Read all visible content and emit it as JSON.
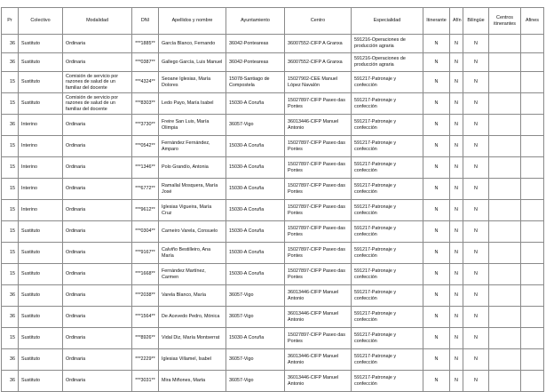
{
  "table": {
    "headers": [
      "Pr",
      "Colectivo",
      "Modalidad",
      "DNI",
      "Apellidos y nombre",
      "Ayuntamiento",
      "Centro",
      "Especialidad",
      "Itinerante",
      "Afín",
      "Bilingüe",
      "Centros itinerantes",
      "Afines"
    ],
    "rows": [
      [
        "36",
        "Sustituto",
        "Ordinaria",
        "***1885**",
        "García Blanco, Fernando",
        "36042-Ponteareas",
        "36007552-CIFP A Granxa",
        "591216-Operaciones de producción agraria",
        "N",
        "N",
        "N",
        "",
        ""
      ],
      [
        "36",
        "Sustituto",
        "Ordinaria",
        "***0387**",
        "Gallego García, Luis Manuel",
        "36042-Ponteareas",
        "36007552-CIFP A Granxa",
        "591216-Operaciones de producción agraria",
        "N",
        "N",
        "N",
        "",
        ""
      ],
      [
        "15",
        "Sustituto",
        "Comisión de servicio por razones de salud de un familiar del docente",
        "***4324**",
        "Seoane Iglesias, María Dolores",
        "15078-Santiago de Compostela",
        "15027902-CEE Manuel López Navalón",
        "591217-Patronaje y confección",
        "N",
        "N",
        "N",
        "",
        ""
      ],
      [
        "15",
        "Sustituto",
        "Comisión de servicio por razones de salud de un familiar del docente",
        "***8303**",
        "Ledo Payo, María Isabel",
        "15030-A Coruña",
        "15027897-CIFP Paseo das Pontes",
        "591217-Patronaje y confección",
        "N",
        "N",
        "N",
        "",
        ""
      ],
      [
        "36",
        "Interino",
        "Ordinaria",
        "***3730**",
        "Freire San Luis, María Olimpia",
        "36057-Vigo",
        "36013446-CIFP Manuel Antonio",
        "591217-Patronaje y confección",
        "N",
        "N",
        "N",
        "",
        ""
      ],
      [
        "15",
        "Interino",
        "Ordinaria",
        "***0542**",
        "Fernández Fernández, Amparo",
        "15030-A Coruña",
        "15027897-CIFP Paseo das Pontes",
        "591217-Patronaje y confección",
        "N",
        "N",
        "N",
        "",
        ""
      ],
      [
        "15",
        "Interino",
        "Ordinaria",
        "***1346**",
        "Polo Grandío, Antonia",
        "15030-A Coruña",
        "15027897-CIFP Paseo das Pontes",
        "591217-Patronaje y confección",
        "N",
        "N",
        "N",
        "",
        ""
      ],
      [
        "15",
        "Interino",
        "Ordinaria",
        "***6772**",
        "Ramallal Mosquera, María José",
        "15030-A Coruña",
        "15027897-CIFP Paseo das Pontes",
        "591217-Patronaje y confección",
        "N",
        "N",
        "N",
        "",
        ""
      ],
      [
        "15",
        "Interino",
        "Ordinaria",
        "***9612**",
        "Iglesias Vigueira, María Cruz",
        "15030-A Coruña",
        "15027897-CIFP Paseo das Pontes",
        "591217-Patronaje y confección",
        "N",
        "N",
        "N",
        "",
        ""
      ],
      [
        "15",
        "Sustituto",
        "Ordinaria",
        "***0304**",
        "Carneiro Varela, Consuelo",
        "15030-A Coruña",
        "15027897-CIFP Paseo das Pontes",
        "591217-Patronaje y confección",
        "N",
        "N",
        "N",
        "",
        ""
      ],
      [
        "15",
        "Sustituto",
        "Ordinaria",
        "***9167**",
        "Calviño Bestilleiro, Ana María",
        "15030-A Coruña",
        "15027897-CIFP Paseo das Pontes",
        "591217-Patronaje y confección",
        "N",
        "N",
        "N",
        "",
        ""
      ],
      [
        "15",
        "Sustituto",
        "Ordinaria",
        "***1668**",
        "Fernández Martínez, Carmen",
        "15030-A Coruña",
        "15027897-CIFP Paseo das Pontes",
        "591217-Patronaje y confección",
        "N",
        "N",
        "N",
        "",
        ""
      ],
      [
        "36",
        "Sustituto",
        "Ordinaria",
        "***2038**",
        "Varela Blanco, María",
        "36057-Vigo",
        "36013446-CIFP Manuel Antonio",
        "591217-Patronaje y confección",
        "N",
        "N",
        "N",
        "",
        ""
      ],
      [
        "36",
        "Sustituto",
        "Ordinaria",
        "***1564**",
        "De Acevedo Pedro, Mónica",
        "36057-Vigo",
        "36013446-CIFP Manuel Antonio",
        "591217-Patronaje y confección",
        "N",
        "N",
        "N",
        "",
        ""
      ],
      [
        "15",
        "Sustituto",
        "Ordinaria",
        "***8926**",
        "Vidal Diz, María Montserrat",
        "15030-A Coruña",
        "15027897-CIFP Paseo das Pontes",
        "591217-Patronaje y confección",
        "N",
        "N",
        "N",
        "",
        ""
      ],
      [
        "36",
        "Sustituto",
        "Ordinaria",
        "***2229**",
        "Iglesias Villamel, Isabel",
        "36057-Vigo",
        "36013446-CIFP Manuel Antonio",
        "591217-Patronaje y confección",
        "N",
        "N",
        "N",
        "",
        ""
      ],
      [
        "36",
        "Sustituto",
        "Ordinaria",
        "***3031**",
        "Mira Miñones, Marta",
        "36057-Vigo",
        "36013446-CIFP Manuel Antonio",
        "591217-Patronaje y confección",
        "N",
        "N",
        "N",
        "",
        ""
      ]
    ]
  }
}
